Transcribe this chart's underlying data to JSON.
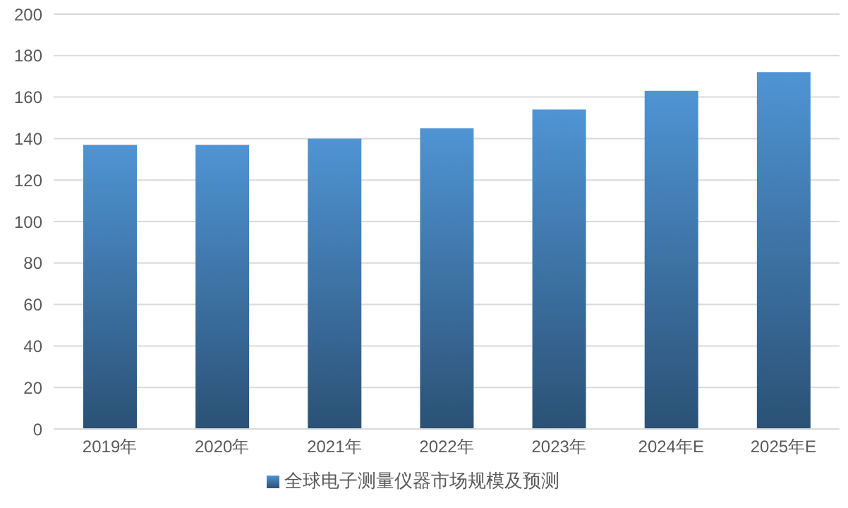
{
  "chart_data": {
    "type": "bar",
    "categories": [
      "2019年",
      "2020年",
      "2021年",
      "2022年",
      "2023年",
      "2024年E",
      "2025年E"
    ],
    "series": [
      {
        "name": "全球电子测量仪器市场规模及预测",
        "color": "#4f94d4",
        "values": [
          137,
          137,
          140,
          145,
          154,
          163,
          172
        ]
      }
    ],
    "ylim": [
      0,
      200
    ],
    "yticks": [
      0,
      20,
      40,
      60,
      80,
      100,
      120,
      140,
      160,
      180,
      200
    ],
    "grid": "y",
    "legend": "bottom"
  }
}
